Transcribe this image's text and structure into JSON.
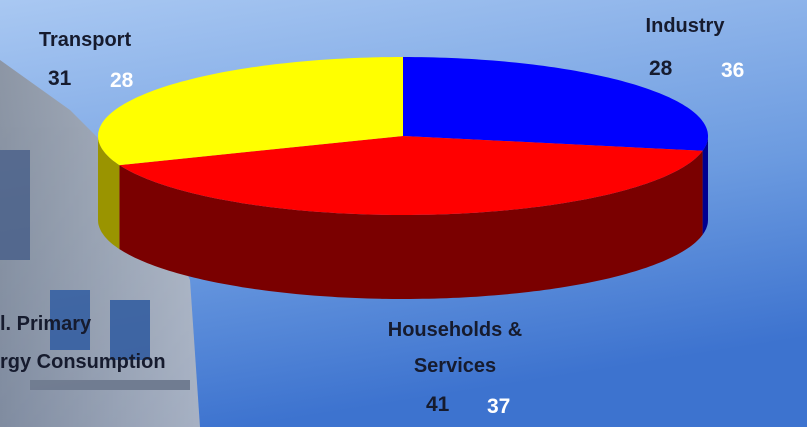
{
  "chart_data": {
    "type": "pie",
    "categories": [
      "Industry",
      "Households & Services",
      "Transport"
    ],
    "colors": [
      "#0000ff",
      "#ff0000",
      "#ffff00"
    ],
    "side_colors": [
      "#000090",
      "#7a0000",
      "#9a9400"
    ],
    "series": [
      {
        "color": "#161b2e",
        "values": [
          28,
          41,
          31
        ]
      },
      {
        "color": "#ffffff",
        "values": [
          36,
          37,
          28
        ]
      }
    ],
    "notes": [
      "l. Primary",
      "rgy Consumption"
    ]
  }
}
